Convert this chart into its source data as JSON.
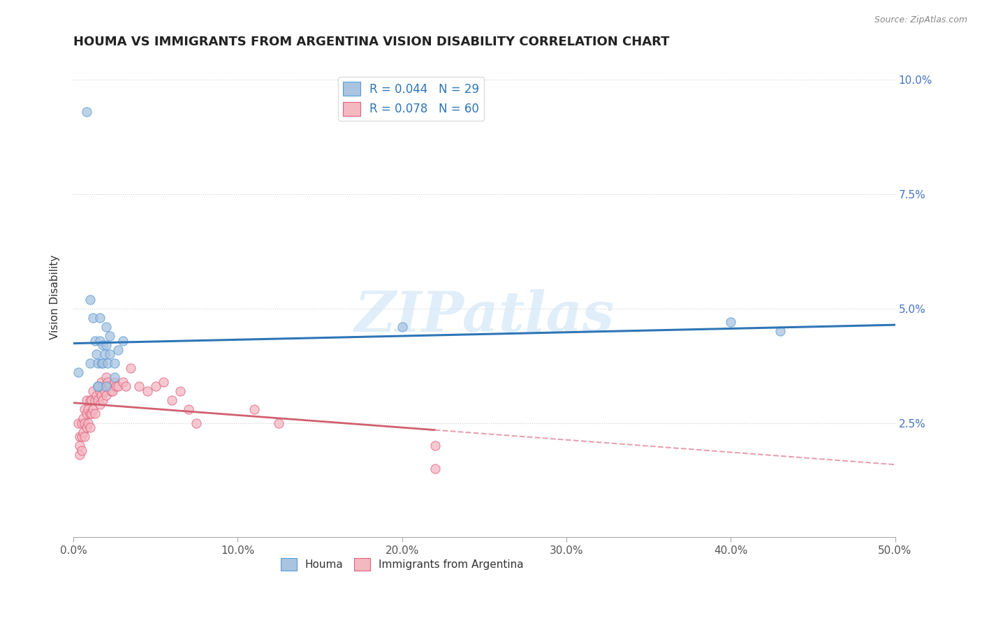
{
  "title": "HOUMA VS IMMIGRANTS FROM ARGENTINA VISION DISABILITY CORRELATION CHART",
  "source": "Source: ZipAtlas.com",
  "ylabel": "Vision Disability",
  "xlabel": "",
  "xlim": [
    0.0,
    0.5
  ],
  "ylim": [
    0.0,
    0.105
  ],
  "xticks": [
    0.0,
    0.1,
    0.2,
    0.3,
    0.4,
    0.5
  ],
  "xticklabels": [
    "0.0%",
    "10.0%",
    "20.0%",
    "30.0%",
    "40.0%",
    "50.0%"
  ],
  "yticks": [
    0.0,
    0.025,
    0.05,
    0.075,
    0.1
  ],
  "yticklabels": [
    "",
    "2.5%",
    "5.0%",
    "7.5%",
    "10.0%"
  ],
  "houma_color": "#a8c4e0",
  "houma_edge_color": "#5b9bd5",
  "argentina_color": "#f4b8c1",
  "argentina_edge_color": "#e06080",
  "houma_line_color": "#2e75b6",
  "argentina_solid_color": "#d06070",
  "argentina_dash_color": "#e8a0b0",
  "watermark_text": "ZIPatlas",
  "legend_label1": "R = 0.044   N = 29",
  "legend_label2": "R = 0.078   N = 60",
  "houma_x": [
    0.003,
    0.008,
    0.01,
    0.01,
    0.012,
    0.013,
    0.014,
    0.015,
    0.015,
    0.016,
    0.016,
    0.017,
    0.018,
    0.018,
    0.019,
    0.02,
    0.02,
    0.021,
    0.022,
    0.022,
    0.025,
    0.027,
    0.03,
    0.2,
    0.4,
    0.43,
    0.015,
    0.02,
    0.025
  ],
  "houma_y": [
    0.036,
    0.093,
    0.052,
    0.038,
    0.048,
    0.043,
    0.04,
    0.038,
    0.033,
    0.048,
    0.043,
    0.038,
    0.042,
    0.038,
    0.04,
    0.046,
    0.042,
    0.038,
    0.044,
    0.04,
    0.038,
    0.041,
    0.043,
    0.046,
    0.047,
    0.045,
    0.033,
    0.033,
    0.035
  ],
  "argentina_x": [
    0.003,
    0.004,
    0.004,
    0.004,
    0.005,
    0.005,
    0.005,
    0.006,
    0.006,
    0.007,
    0.007,
    0.007,
    0.008,
    0.008,
    0.008,
    0.009,
    0.009,
    0.01,
    0.01,
    0.01,
    0.011,
    0.011,
    0.012,
    0.012,
    0.013,
    0.013,
    0.014,
    0.015,
    0.015,
    0.016,
    0.016,
    0.017,
    0.017,
    0.018,
    0.018,
    0.019,
    0.02,
    0.02,
    0.021,
    0.022,
    0.023,
    0.024,
    0.025,
    0.026,
    0.027,
    0.03,
    0.032,
    0.035,
    0.04,
    0.045,
    0.05,
    0.055,
    0.06,
    0.065,
    0.07,
    0.075,
    0.11,
    0.125,
    0.22,
    0.22
  ],
  "argentina_y": [
    0.025,
    0.022,
    0.02,
    0.018,
    0.025,
    0.022,
    0.019,
    0.026,
    0.023,
    0.028,
    0.025,
    0.022,
    0.03,
    0.027,
    0.024,
    0.028,
    0.025,
    0.03,
    0.027,
    0.024,
    0.03,
    0.027,
    0.032,
    0.028,
    0.03,
    0.027,
    0.031,
    0.033,
    0.03,
    0.032,
    0.029,
    0.034,
    0.031,
    0.033,
    0.03,
    0.032,
    0.035,
    0.031,
    0.034,
    0.033,
    0.032,
    0.032,
    0.034,
    0.033,
    0.033,
    0.034,
    0.033,
    0.037,
    0.033,
    0.032,
    0.033,
    0.034,
    0.03,
    0.032,
    0.028,
    0.025,
    0.028,
    0.025,
    0.02,
    0.015
  ]
}
